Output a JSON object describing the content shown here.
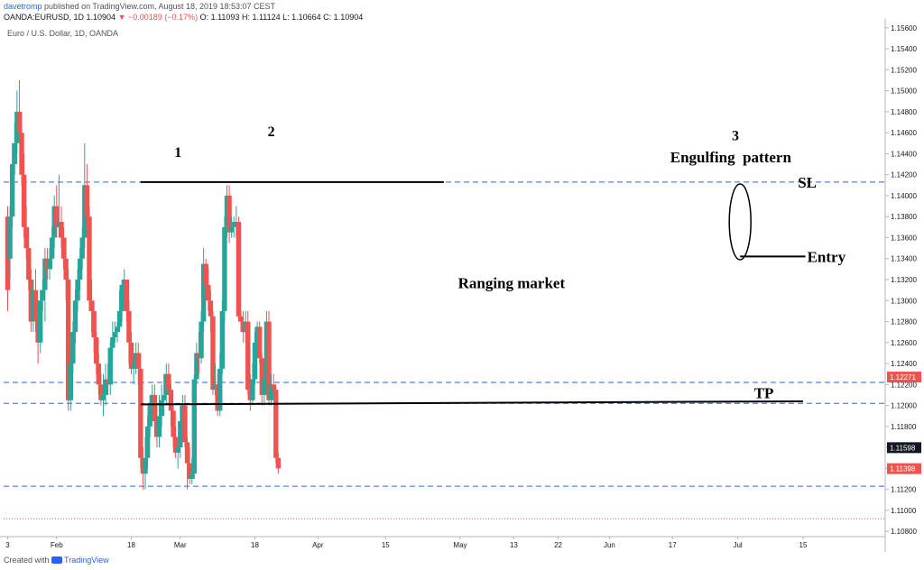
{
  "header": {
    "user": "davetromp",
    "published": "published on TradingView.com, August 18, 2019 18:53:07 CEST",
    "symbol": "OANDA:EURUSD, 1D",
    "last": "1.10904",
    "change": "▼ −0.00189 (−0.17%)",
    "ohlc": "O: 1.11093 H: 1.11124 L: 1.10664 C: 1.10904"
  },
  "instrument": "Euro / U.S. Dollar, 1D, OANDA",
  "footer": {
    "created_with": "Created with",
    "brand": "TradingView"
  },
  "colors": {
    "up": "#26a69a",
    "down": "#ef5350",
    "level_line": "#2962ff",
    "drawing": "#000000"
  },
  "chart_data": {
    "type": "candlestick",
    "title": "Euro / U.S. Dollar, 1D, OANDA",
    "ylim": [
      1.1075,
      1.1565
    ],
    "y_ticks": [
      "1.15600",
      "1.15400",
      "1.15200",
      "1.15000",
      "1.14800",
      "1.14600",
      "1.14400",
      "1.14200",
      "1.14000",
      "1.13800",
      "1.13600",
      "1.13400",
      "1.13200",
      "1.13000",
      "1.12800",
      "1.12600",
      "1.12400",
      "1.12200",
      "1.12000",
      "1.11800",
      "1.11600",
      "1.11400",
      "1.11200",
      "1.11000",
      "1.10800"
    ],
    "x_ticks": [
      {
        "label": "3",
        "i": 0
      },
      {
        "label": "Feb",
        "i": 21
      },
      {
        "label": "18",
        "i": 53
      },
      {
        "label": "Mar",
        "i": 74
      },
      {
        "label": "18",
        "i": 106
      },
      {
        "label": "Apr",
        "i": 133
      },
      {
        "label": "15",
        "i": 162
      },
      {
        "label": "May",
        "i": 194
      },
      {
        "label": "13",
        "i": 217
      },
      {
        "label": "22",
        "i": 236
      },
      {
        "label": "Jun",
        "i": 258
      },
      {
        "label": "17",
        "i": 285
      },
      {
        "label": "Jul",
        "i": 313
      },
      {
        "label": "15",
        "i": 341
      }
    ],
    "price_badges": [
      {
        "value": "1.12271",
        "color": "#ef5350"
      },
      {
        "value": "1.11598",
        "color": "#131722"
      },
      {
        "value": "1.11398",
        "color": "#ef5350"
      }
    ],
    "candles": [
      [
        1.138,
        1.131,
        1.139,
        1.129
      ],
      [
        1.134,
        1.138,
        1.139,
        1.132
      ],
      [
        1.138,
        1.143,
        1.145,
        1.137
      ],
      [
        1.143,
        1.145,
        1.147,
        1.142
      ],
      [
        1.145,
        1.148,
        1.15,
        1.144
      ],
      [
        1.148,
        1.146,
        1.151,
        1.145
      ],
      [
        1.146,
        1.142,
        1.148,
        1.141
      ],
      [
        1.142,
        1.137,
        1.144,
        1.136
      ],
      [
        1.137,
        1.135,
        1.139,
        1.134
      ],
      [
        1.135,
        1.132,
        1.137,
        1.131
      ],
      [
        1.132,
        1.128,
        1.133,
        1.127
      ],
      [
        1.128,
        1.131,
        1.132,
        1.127
      ],
      [
        1.131,
        1.128,
        1.133,
        1.127
      ],
      [
        1.128,
        1.126,
        1.13,
        1.124
      ],
      [
        1.126,
        1.13,
        1.131,
        1.125
      ],
      [
        1.13,
        1.131,
        1.132,
        1.129
      ],
      [
        1.131,
        1.134,
        1.135,
        1.128
      ],
      [
        1.134,
        1.133,
        1.135,
        1.132
      ],
      [
        1.133,
        1.134,
        1.135,
        1.132
      ],
      [
        1.134,
        1.136,
        1.137,
        1.133
      ],
      [
        1.136,
        1.139,
        1.14,
        1.135
      ],
      [
        1.139,
        1.137,
        1.141,
        1.136
      ],
      [
        1.137,
        1.1375,
        1.142,
        1.136
      ],
      [
        1.1375,
        1.136,
        1.139,
        1.135
      ],
      [
        1.136,
        1.134,
        1.137,
        1.133
      ],
      [
        1.134,
        1.132,
        1.136,
        1.13
      ],
      [
        1.132,
        1.1205,
        1.133,
        1.1195
      ],
      [
        1.1205,
        1.124,
        1.125,
        1.1195
      ],
      [
        1.124,
        1.127,
        1.128,
        1.123
      ],
      [
        1.127,
        1.13,
        1.131,
        1.126
      ],
      [
        1.13,
        1.132,
        1.133,
        1.129
      ],
      [
        1.132,
        1.134,
        1.135,
        1.131
      ],
      [
        1.134,
        1.136,
        1.137,
        1.133
      ],
      [
        1.136,
        1.141,
        1.145,
        1.135
      ],
      [
        1.141,
        1.138,
        1.143,
        1.137
      ],
      [
        1.138,
        1.13,
        1.139,
        1.129
      ],
      [
        1.13,
        1.129,
        1.132,
        1.127
      ],
      [
        1.129,
        1.1265,
        1.13,
        1.125
      ],
      [
        1.1265,
        1.124,
        1.127,
        1.123
      ],
      [
        1.124,
        1.122,
        1.125,
        1.121
      ],
      [
        1.122,
        1.1205,
        1.123,
        1.12
      ],
      [
        1.1205,
        1.121,
        1.123,
        1.119
      ],
      [
        1.121,
        1.1225,
        1.124,
        1.12
      ],
      [
        1.1225,
        1.122,
        1.124,
        1.121
      ],
      [
        1.122,
        1.1255,
        1.126,
        1.121
      ],
      [
        1.1255,
        1.1265,
        1.128,
        1.125
      ],
      [
        1.1265,
        1.127,
        1.128,
        1.126
      ],
      [
        1.127,
        1.1275,
        1.128,
        1.126
      ],
      [
        1.1275,
        1.129,
        1.131,
        1.127
      ],
      [
        1.129,
        1.1315,
        1.132,
        1.128
      ],
      [
        1.1315,
        1.132,
        1.133,
        1.13
      ],
      [
        1.132,
        1.129,
        1.132,
        1.128
      ],
      [
        1.129,
        1.126,
        1.13,
        1.124
      ],
      [
        1.126,
        1.1235,
        1.127,
        1.123
      ],
      [
        1.1235,
        1.124,
        1.125,
        1.122
      ],
      [
        1.124,
        1.125,
        1.126,
        1.123
      ],
      [
        1.125,
        1.1235,
        1.126,
        1.122
      ],
      [
        1.1235,
        1.115,
        1.125,
        1.114
      ],
      [
        1.115,
        1.1135,
        1.116,
        1.112
      ],
      [
        1.1135,
        1.115,
        1.117,
        1.112
      ],
      [
        1.115,
        1.118,
        1.119,
        1.114
      ],
      [
        1.118,
        1.12,
        1.121,
        1.117
      ],
      [
        1.12,
        1.121,
        1.122,
        1.119
      ],
      [
        1.121,
        1.1185,
        1.122,
        1.117
      ],
      [
        1.1185,
        1.117,
        1.12,
        1.116
      ],
      [
        1.117,
        1.119,
        1.121,
        1.116
      ],
      [
        1.119,
        1.1205,
        1.122,
        1.118
      ],
      [
        1.1205,
        1.121,
        1.123,
        1.119
      ],
      [
        1.121,
        1.123,
        1.124,
        1.12
      ],
      [
        1.123,
        1.1215,
        1.124,
        1.121
      ],
      [
        1.1215,
        1.1195,
        1.122,
        1.118
      ],
      [
        1.1195,
        1.117,
        1.12,
        1.116
      ],
      [
        1.117,
        1.1155,
        1.118,
        1.115
      ],
      [
        1.1155,
        1.116,
        1.117,
        1.114
      ],
      [
        1.116,
        1.1185,
        1.12,
        1.115
      ],
      [
        1.1185,
        1.12,
        1.121,
        1.118
      ],
      [
        1.12,
        1.1165,
        1.121,
        1.116
      ],
      [
        1.1165,
        1.1145,
        1.117,
        1.112
      ],
      [
        1.1145,
        1.113,
        1.116,
        1.1125
      ],
      [
        1.113,
        1.1135,
        1.115,
        1.1125
      ],
      [
        1.1135,
        1.1225,
        1.123,
        1.113
      ],
      [
        1.1225,
        1.125,
        1.126,
        1.122
      ],
      [
        1.125,
        1.1245,
        1.127,
        1.123
      ],
      [
        1.1245,
        1.128,
        1.129,
        1.124
      ],
      [
        1.128,
        1.1335,
        1.135,
        1.127
      ],
      [
        1.1335,
        1.1315,
        1.134,
        1.13
      ],
      [
        1.1315,
        1.13,
        1.133,
        1.129
      ],
      [
        1.13,
        1.1285,
        1.131,
        1.127
      ],
      [
        1.1285,
        1.1215,
        1.129,
        1.121
      ],
      [
        1.1215,
        1.122,
        1.124,
        1.121
      ],
      [
        1.122,
        1.1195,
        1.123,
        1.119
      ],
      [
        1.1195,
        1.1235,
        1.125,
        1.119
      ],
      [
        1.1235,
        1.129,
        1.13,
        1.123
      ],
      [
        1.129,
        1.137,
        1.138,
        1.128
      ],
      [
        1.137,
        1.14,
        1.141,
        1.136
      ],
      [
        1.14,
        1.1365,
        1.141,
        1.1355
      ],
      [
        1.1365,
        1.137,
        1.138,
        1.136
      ],
      [
        1.137,
        1.1375,
        1.138,
        1.136
      ],
      [
        1.1375,
        1.1375,
        1.139,
        1.136
      ],
      [
        1.1375,
        1.1285,
        1.138,
        1.128
      ],
      [
        1.1285,
        1.128,
        1.129,
        1.127
      ],
      [
        1.128,
        1.127,
        1.129,
        1.126
      ],
      [
        1.127,
        1.128,
        1.129,
        1.126
      ],
      [
        1.128,
        1.1215,
        1.129,
        1.121
      ],
      [
        1.1215,
        1.1205,
        1.123,
        1.1195
      ],
      [
        1.1205,
        1.1225,
        1.124,
        1.12
      ],
      [
        1.1225,
        1.126,
        1.127,
        1.122
      ],
      [
        1.126,
        1.1275,
        1.128,
        1.125
      ],
      [
        1.1275,
        1.1245,
        1.128,
        1.124
      ],
      [
        1.1245,
        1.121,
        1.125,
        1.12
      ],
      [
        1.121,
        1.1225,
        1.124,
        1.12
      ],
      [
        1.1225,
        1.128,
        1.129,
        1.122
      ],
      [
        1.128,
        1.1205,
        1.129,
        1.12
      ],
      [
        1.1205,
        1.122,
        1.123,
        1.12
      ],
      [
        1.122,
        1.1215,
        1.123,
        1.121
      ],
      [
        1.1215,
        1.115,
        1.122,
        1.1145
      ],
      [
        1.115,
        1.114,
        1.1155,
        1.1135
      ]
    ],
    "horizontal_levels": [
      1.1413,
      1.1222,
      1.1202,
      1.1123
    ],
    "red_dotted_level": 1.1092,
    "annotations": [
      {
        "label": "1",
        "i": 40,
        "price": 1.1442
      },
      {
        "label": "2",
        "i": 64,
        "price": 1.1462
      },
      {
        "label": "3",
        "i": 170,
        "price": 1.1458
      },
      {
        "label": "Engulfing  pattern",
        "i": 168,
        "price": 1.1437
      },
      {
        "label": "SL",
        "i": 187,
        "price": 1.1413
      },
      {
        "label": "Entry",
        "i": 193,
        "price": 1.1342
      },
      {
        "label": "Ranging market",
        "i": 115,
        "price": 1.1317
      },
      {
        "label": "TP",
        "i": 177,
        "price": 1.1212
      }
    ]
  }
}
